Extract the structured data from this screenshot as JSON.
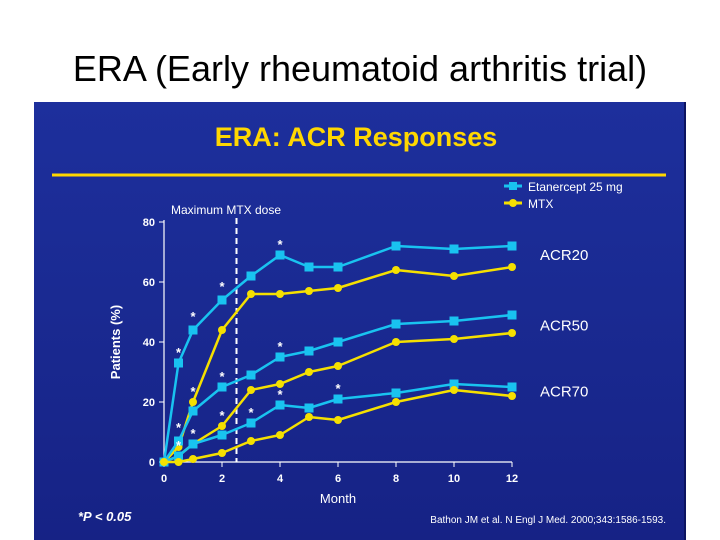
{
  "slide": {
    "title": "ERA (Early rheumatoid arthritis trial)"
  },
  "colors": {
    "panel_background": "#1a2a92",
    "headline": "#ffd700",
    "etanercept": "#19c3f0",
    "mtx": "#f5e000",
    "text": "#ffffff"
  },
  "chart_data": {
    "type": "line",
    "title": "ERA: ACR Responses",
    "xlabel": "Month",
    "ylabel": "Patients (%)",
    "xlim": [
      0,
      12
    ],
    "ylim": [
      0,
      80
    ],
    "x_ticks": [
      0,
      2,
      4,
      6,
      8,
      10,
      12
    ],
    "y_ticks": [
      0,
      20,
      40,
      60,
      80
    ],
    "legend_position": "top-right",
    "annotation_line": {
      "x": 2.5,
      "label": "Maximum MTX dose"
    },
    "footnote": "*P < 0.05",
    "citation": "Bathon JM et al. N Engl J Med. 2000;343:1586-1593.",
    "series": [
      {
        "name": "Etanercept 25 mg",
        "group": "ACR20",
        "color": "#19c3f0",
        "marker": "square",
        "x": [
          0,
          0.5,
          1,
          2,
          3,
          4,
          5,
          6,
          8,
          10,
          12
        ],
        "y": [
          0,
          33,
          44,
          54,
          62,
          69,
          65,
          65,
          72,
          71,
          72
        ]
      },
      {
        "name": "MTX",
        "group": "ACR20",
        "color": "#f5e000",
        "marker": "circle",
        "x": [
          0,
          0.5,
          1,
          2,
          3,
          4,
          5,
          6,
          8,
          10,
          12
        ],
        "y": [
          0,
          5,
          20,
          44,
          56,
          56,
          57,
          58,
          64,
          62,
          65
        ]
      },
      {
        "name": "Etanercept 25 mg",
        "group": "ACR50",
        "color": "#19c3f0",
        "marker": "square",
        "x": [
          0,
          0.5,
          1,
          2,
          3,
          4,
          5,
          6,
          8,
          10,
          12
        ],
        "y": [
          0,
          7,
          17,
          25,
          29,
          35,
          37,
          40,
          46,
          47,
          49
        ]
      },
      {
        "name": "MTX",
        "group": "ACR50",
        "color": "#f5e000",
        "marker": "circle",
        "x": [
          0,
          0.5,
          1,
          2,
          3,
          4,
          5,
          6,
          8,
          10,
          12
        ],
        "y": [
          0,
          2,
          6,
          12,
          24,
          26,
          30,
          32,
          40,
          41,
          43
        ]
      },
      {
        "name": "Etanercept 25 mg",
        "group": "ACR70",
        "color": "#19c3f0",
        "marker": "square",
        "x": [
          0,
          0.5,
          1,
          2,
          3,
          4,
          5,
          6,
          8,
          10,
          12
        ],
        "y": [
          0,
          2,
          6,
          9,
          13,
          19,
          18,
          21,
          23,
          26,
          25
        ]
      },
      {
        "name": "MTX",
        "group": "ACR70",
        "color": "#f5e000",
        "marker": "circle",
        "x": [
          0,
          0.5,
          1,
          2,
          3,
          4,
          5,
          6,
          8,
          10,
          12
        ],
        "y": [
          0,
          0,
          1,
          3,
          7,
          9,
          15,
          14,
          20,
          24,
          22
        ]
      }
    ],
    "group_labels": [
      {
        "text": "ACR20",
        "y": 69
      },
      {
        "text": "ACR50",
        "y": 45.5
      },
      {
        "text": "ACR70",
        "y": 23.5
      }
    ],
    "significance_marks": [
      {
        "text": "*",
        "x": 0.5,
        "y": 34
      },
      {
        "text": "*",
        "x": 1,
        "y": 46
      },
      {
        "text": "*",
        "x": 2,
        "y": 56
      },
      {
        "text": "*",
        "x": 4,
        "y": 70
      },
      {
        "text": "*",
        "x": 0.5,
        "y": 9
      },
      {
        "text": "*",
        "x": 1,
        "y": 21
      },
      {
        "text": "*",
        "x": 2,
        "y": 26
      },
      {
        "text": "*",
        "x": 4,
        "y": 36
      },
      {
        "text": "*",
        "x": 0.5,
        "y": 3
      },
      {
        "text": "*",
        "x": 1,
        "y": 7
      },
      {
        "text": "*",
        "x": 2,
        "y": 13
      },
      {
        "text": "*",
        "x": 3,
        "y": 14
      },
      {
        "text": "*",
        "x": 4,
        "y": 20
      },
      {
        "text": "*",
        "x": 6,
        "y": 22
      }
    ]
  }
}
